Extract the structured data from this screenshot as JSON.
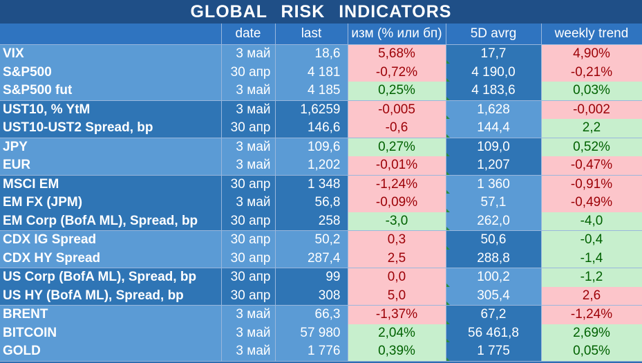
{
  "title": "GLOBAL   RISK   INDICATORS",
  "columns": [
    "",
    "date",
    "last",
    "изм (% или бп)",
    "5D avrg",
    "weekly trend"
  ],
  "colors": {
    "negative": "#fcc5ca",
    "positive": "#c7efcd",
    "header": "#1f4f87"
  },
  "rows": [
    {
      "name": "VIX",
      "date": "3 май",
      "last": "18,6",
      "chg": "5,68%",
      "chg_sign": "neg",
      "avrg": "17,7",
      "wk": "4,90%",
      "wk_sign": "neg"
    },
    {
      "name": "S&P500",
      "date": "30 апр",
      "last": "4 181",
      "chg": "-0,72%",
      "chg_sign": "neg",
      "avrg": "4 190,0",
      "wk": "-0,21%",
      "wk_sign": "neg"
    },
    {
      "name": "S&P500 fut",
      "date": "3 май",
      "last": "4 185",
      "chg": "0,25%",
      "chg_sign": "pos",
      "avrg": "4 183,6",
      "wk": "0,03%",
      "wk_sign": "pos"
    },
    {
      "name": "UST10, % YtM",
      "date": "3 май",
      "last": "1,6259",
      "chg": "-0,005",
      "chg_sign": "neg",
      "avrg": "1,628",
      "wk": "-0,002",
      "wk_sign": "neg"
    },
    {
      "name": "UST10-UST2 Spread, bp",
      "date": "30 апр",
      "last": "146,6",
      "chg": "-0,6",
      "chg_sign": "neg",
      "avrg": "144,4",
      "wk": "2,2",
      "wk_sign": "pos"
    },
    {
      "name": "JPY",
      "date": "3 май",
      "last": "109,6",
      "chg": "0,27%",
      "chg_sign": "pos",
      "avrg": "109,0",
      "wk": "0,52%",
      "wk_sign": "pos"
    },
    {
      "name": "EUR",
      "date": "3 май",
      "last": "1,202",
      "chg": "-0,01%",
      "chg_sign": "neg",
      "avrg": "1,207",
      "wk": "-0,47%",
      "wk_sign": "neg"
    },
    {
      "name": "MSCI EM",
      "date": "30 апр",
      "last": "1 348",
      "chg": "-1,24%",
      "chg_sign": "neg",
      "avrg": "1 360",
      "wk": "-0,91%",
      "wk_sign": "neg"
    },
    {
      "name": "EM FX (JPM)",
      "date": "3 май",
      "last": "56,8",
      "chg": "-0,09%",
      "chg_sign": "neg",
      "avrg": "57,1",
      "wk": "-0,49%",
      "wk_sign": "neg"
    },
    {
      "name": "EM Corp (BofA ML), Spread, bp",
      "date": "30 апр",
      "last": "258",
      "chg": "-3,0",
      "chg_sign": "pos",
      "avrg": "262,0",
      "wk": "-4,0",
      "wk_sign": "pos"
    },
    {
      "name": "CDX IG Spread",
      "date": "30 апр",
      "last": "50,2",
      "chg": "0,3",
      "chg_sign": "neg",
      "avrg": "50,6",
      "wk": "-0,4",
      "wk_sign": "pos"
    },
    {
      "name": "CDX HY Spread",
      "date": "30 апр",
      "last": "287,4",
      "chg": "2,5",
      "chg_sign": "neg",
      "avrg": "288,8",
      "wk": "-1,4",
      "wk_sign": "pos"
    },
    {
      "name": "US Corp (BofA ML), Spread, bp",
      "date": "30 апр",
      "last": "99",
      "chg": "0,0",
      "chg_sign": "neg",
      "avrg": "100,2",
      "wk": "-1,2",
      "wk_sign": "pos"
    },
    {
      "name": "US HY (BofA ML), Spread, bp",
      "date": "30 апр",
      "last": "308",
      "chg": "5,0",
      "chg_sign": "neg",
      "avrg": "305,4",
      "wk": "2,6",
      "wk_sign": "neg"
    },
    {
      "name": "BRENT",
      "date": "3 май",
      "last": "66,3",
      "chg": "-1,37%",
      "chg_sign": "neg",
      "avrg": "67,2",
      "wk": "-1,24%",
      "wk_sign": "neg"
    },
    {
      "name": "BITCOIN",
      "date": "3 май",
      "last": "57 980",
      "chg": "2,04%",
      "chg_sign": "pos",
      "avrg": "56 461,8",
      "wk": "2,69%",
      "wk_sign": "pos"
    },
    {
      "name": "GOLD",
      "date": "3 май",
      "last": "1 776",
      "chg": "0,39%",
      "chg_sign": "pos",
      "avrg": "1 775",
      "wk": "0,05%",
      "wk_sign": "pos"
    }
  ]
}
